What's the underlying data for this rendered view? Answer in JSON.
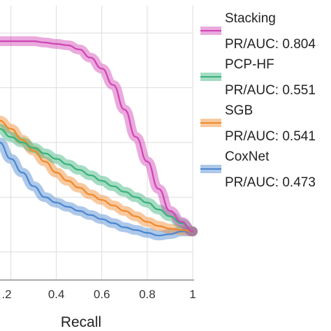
{
  "chart_data": {
    "type": "line",
    "xlabel": "Recall",
    "ylabel": "",
    "xlim": [
      0.1,
      1.0
    ],
    "ylim": [
      0.0,
      1.0
    ],
    "x_ticks": [
      ".2",
      "0.4",
      "0.6",
      "0.8",
      "1"
    ],
    "x_tick_values": [
      0.2,
      0.4,
      0.6,
      0.8,
      1.0
    ],
    "y_grid": [
      0.1,
      0.3,
      0.5,
      0.7,
      0.9
    ],
    "grid": true,
    "legend_position": "right",
    "series": [
      {
        "name": "CoxNet",
        "auc_label": "PR/AUC: 0.473",
        "color": "#4a86cf",
        "x": [
          0.1,
          0.15,
          0.2,
          0.25,
          0.3,
          0.35,
          0.4,
          0.45,
          0.5,
          0.55,
          0.6,
          0.65,
          0.7,
          0.75,
          0.8,
          0.85,
          0.9,
          0.95,
          1.0
        ],
        "y": [
          0.55,
          0.5,
          0.44,
          0.39,
          0.34,
          0.3,
          0.28,
          0.265,
          0.25,
          0.235,
          0.22,
          0.205,
          0.19,
          0.18,
          0.17,
          0.16,
          0.165,
          0.175,
          0.175
        ]
      },
      {
        "name": "SGB",
        "auc_label": "PR/AUC: 0.541",
        "color": "#f0882a",
        "x": [
          0.1,
          0.15,
          0.2,
          0.25,
          0.3,
          0.35,
          0.4,
          0.45,
          0.5,
          0.55,
          0.6,
          0.65,
          0.7,
          0.75,
          0.8,
          0.85,
          0.9,
          0.95,
          1.0
        ],
        "y": [
          0.6,
          0.58,
          0.55,
          0.51,
          0.47,
          0.43,
          0.39,
          0.36,
          0.335,
          0.31,
          0.29,
          0.27,
          0.25,
          0.23,
          0.21,
          0.195,
          0.185,
          0.18,
          0.175
        ]
      },
      {
        "name": "PCP-HF",
        "auc_label": "PR/AUC: 0.551",
        "color": "#38b27a",
        "x": [
          0.1,
          0.15,
          0.2,
          0.25,
          0.3,
          0.35,
          0.4,
          0.45,
          0.5,
          0.55,
          0.6,
          0.65,
          0.7,
          0.75,
          0.8,
          0.85,
          0.9,
          0.95,
          1.0
        ],
        "y": [
          0.58,
          0.55,
          0.52,
          0.5,
          0.48,
          0.46,
          0.44,
          0.42,
          0.4,
          0.38,
          0.36,
          0.34,
          0.32,
          0.3,
          0.28,
          0.255,
          0.23,
          0.205,
          0.175
        ]
      },
      {
        "name": "Stacking",
        "auc_label": "PR/AUC: 0.804",
        "color": "#d043b4",
        "x": [
          0.1,
          0.2,
          0.3,
          0.35,
          0.4,
          0.45,
          0.5,
          0.55,
          0.6,
          0.65,
          0.7,
          0.75,
          0.8,
          0.85,
          0.9,
          0.95,
          1.0
        ],
        "y": [
          0.87,
          0.87,
          0.87,
          0.865,
          0.86,
          0.855,
          0.84,
          0.81,
          0.77,
          0.71,
          0.62,
          0.52,
          0.43,
          0.33,
          0.25,
          0.21,
          0.175
        ]
      }
    ]
  },
  "legend": {
    "items": [
      {
        "name": "Stacking",
        "auc_label": "PR/AUC: 0.804",
        "color": "#d043b4"
      },
      {
        "name": "PCP-HF",
        "auc_label": "PR/AUC: 0.551",
        "color": "#38b27a"
      },
      {
        "name": "SGB",
        "auc_label": "PR/AUC: 0.541",
        "color": "#f0882a"
      },
      {
        "name": "CoxNet",
        "auc_label": "PR/AUC: 0.473",
        "color": "#4a86cf"
      }
    ]
  }
}
